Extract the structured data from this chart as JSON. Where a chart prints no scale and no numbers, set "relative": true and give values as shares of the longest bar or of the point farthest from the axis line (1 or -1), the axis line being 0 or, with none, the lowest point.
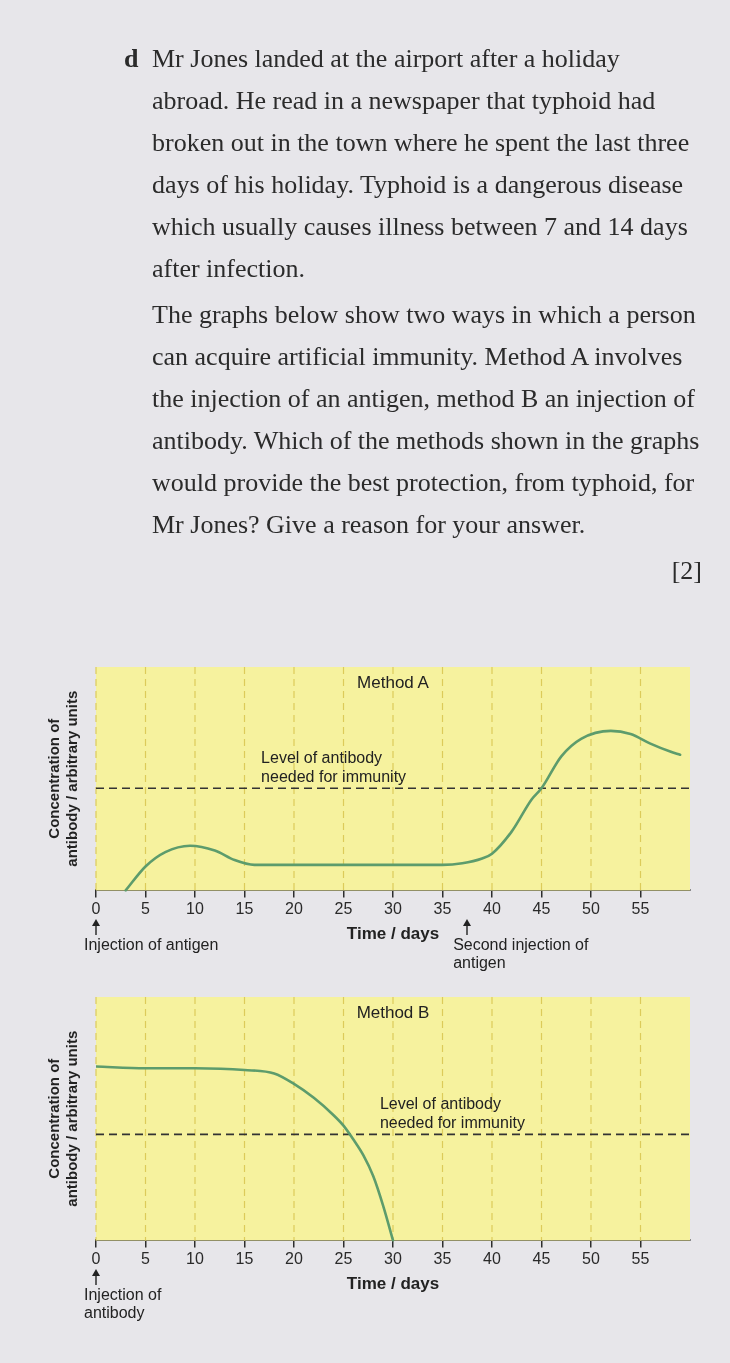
{
  "chart_data": [
    {
      "type": "other",
      "annotations": [
        "d",
        "Mr Jones landed at the airport after a holiday abroad. He read in a newspaper that typhoid had broken out in the town where he spent the last three days of his holiday. Typhoid is a dangerous disease which usually causes illness between 7 and 14 days after infection.",
        "The graphs below show two ways in which a person can acquire artificial immunity. Method A involves the injection of an antigen, method B an injection of antibody. Which of the methods shown in the graphs would provide the best protection, from typhoid, for Mr Jones? Give a reason for your answer.",
        "[2]"
      ]
    },
    {
      "type": "line",
      "title": "Method A",
      "xlabel": "Time / days",
      "ylabel": "Concentration of antibody / arbitrary units",
      "relative": true,
      "x": [
        3,
        5,
        7,
        9.5,
        12,
        14,
        16,
        20,
        25,
        30,
        35,
        37,
        39,
        40,
        42,
        44,
        45,
        47,
        49,
        52,
        54,
        56,
        58,
        59
      ],
      "values": [
        0,
        0.15,
        0.24,
        0.28,
        0.25,
        0.19,
        0.16,
        0.16,
        0.16,
        0.16,
        0.16,
        0.17,
        0.2,
        0.23,
        0.37,
        0.57,
        0.64,
        0.84,
        0.95,
        1,
        0.98,
        0.92,
        0.87,
        0.85
      ],
      "color": "#5d9c6c",
      "xlim": [
        0,
        60
      ],
      "xticks": [
        0,
        5,
        10,
        15,
        20,
        25,
        30,
        35,
        40,
        45,
        50,
        55
      ],
      "grid": "x",
      "marker": "none",
      "line_style": "solid",
      "ref_lines": [
        {
          "axis": "y",
          "value": 0.64,
          "label": "Level of antibody needed for immunity",
          "color": "#333333",
          "line_style": "dashed"
        }
      ],
      "annotations": [
        "Injection of antigen",
        "Second injection of antigen"
      ]
    },
    {
      "type": "line",
      "title": "Method B",
      "xlabel": "Time / days",
      "ylabel": "Concentration of antibody / arbitrary units",
      "relative": true,
      "x": [
        0,
        5,
        10,
        15,
        18,
        20,
        22,
        24,
        25,
        26,
        27,
        28,
        29,
        30
      ],
      "values": [
        1,
        0.99,
        0.99,
        0.98,
        0.96,
        0.9,
        0.82,
        0.72,
        0.66,
        0.58,
        0.49,
        0.37,
        0.2,
        0
      ],
      "color": "#5d9c6c",
      "xlim": [
        0,
        60
      ],
      "xticks": [
        0,
        5,
        10,
        15,
        20,
        25,
        30,
        35,
        40,
        45,
        50,
        55
      ],
      "grid": "x",
      "marker": "none",
      "line_style": "solid",
      "ref_lines": [
        {
          "axis": "y",
          "value": 0.61,
          "label": "Level of antibody needed for immunity",
          "color": "#333333",
          "line_style": "dashed"
        }
      ],
      "annotations": [
        "Injection of antibody"
      ]
    }
  ]
}
